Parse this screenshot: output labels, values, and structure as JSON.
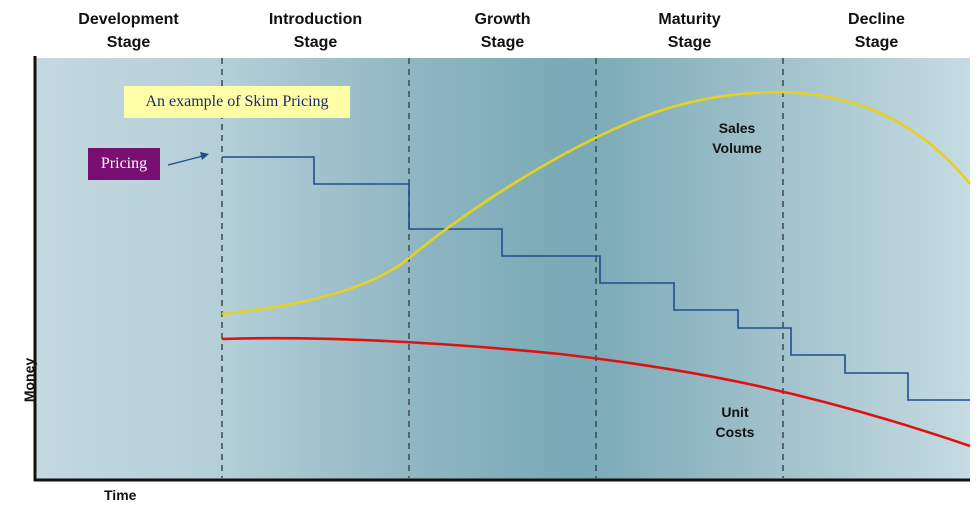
{
  "stages": [
    {
      "line1": "Development",
      "line2": "Stage"
    },
    {
      "line1": "Introduction",
      "line2": "Stage"
    },
    {
      "line1": "Growth",
      "line2": "Stage"
    },
    {
      "line1": "Maturity",
      "line2": "Stage"
    },
    {
      "line1": "Decline",
      "line2": "Stage"
    }
  ],
  "axes": {
    "y_label": "Money",
    "x_label": "Time"
  },
  "callouts": {
    "title": "An example of Skim Pricing",
    "pricing": "Pricing"
  },
  "curves": {
    "sales": {
      "line1": "Sales",
      "line2": "Volume"
    },
    "costs": {
      "line1": "Unit",
      "line2": "Costs"
    }
  },
  "colors": {
    "sales_curve": "#e6d21e",
    "costs_curve": "#e01010",
    "pricing_line": "#1e4f8c",
    "title_bg": "#ffffa8",
    "pricing_bg": "#7a0f73"
  }
}
